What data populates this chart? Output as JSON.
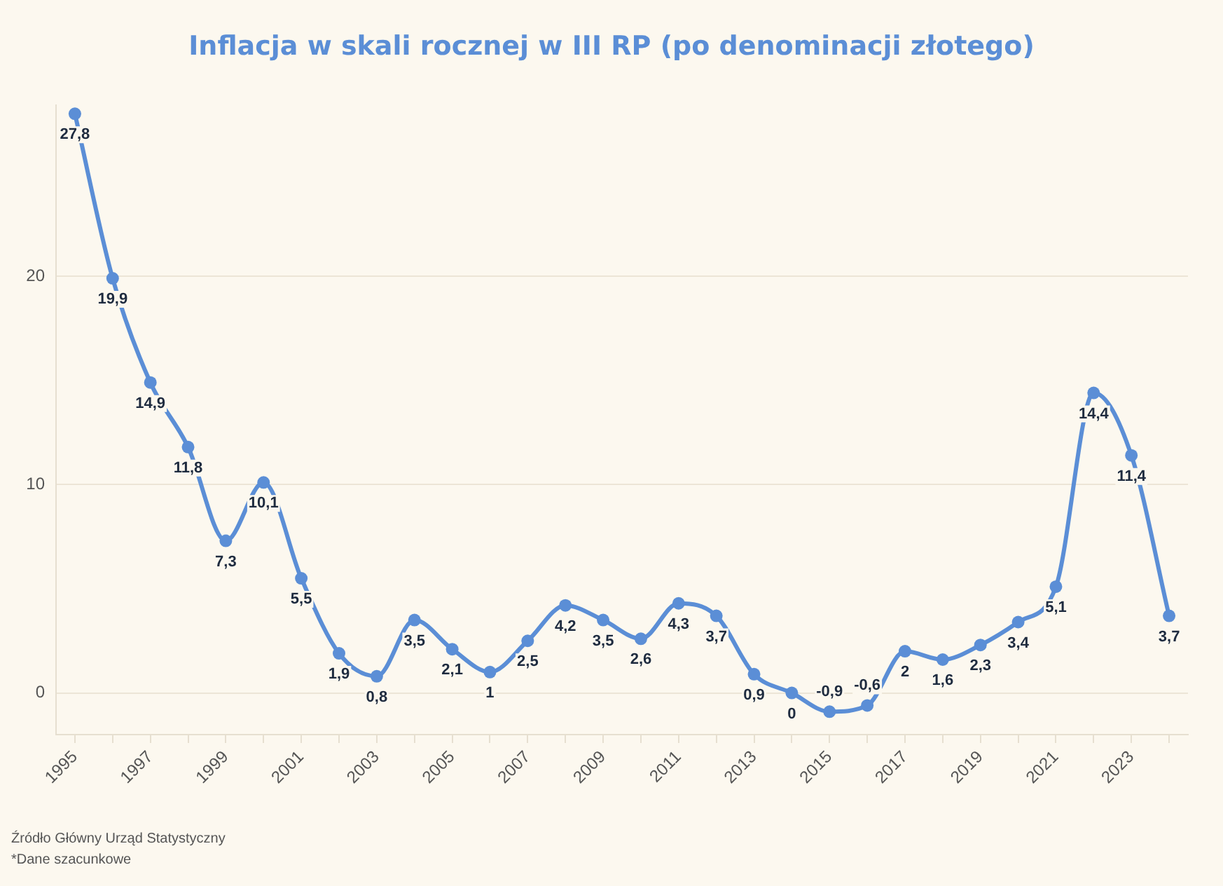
{
  "chart_data": {
    "type": "line",
    "title": "Inflacja w skali rocznej w III RP (po denominacji złotego)",
    "categories": [
      "1995",
      null,
      "1997",
      null,
      "1999",
      null,
      "2001",
      null,
      "2003",
      null,
      "2005",
      null,
      "2007",
      null,
      "2009",
      null,
      "2011",
      null,
      "2013",
      null,
      "2015",
      null,
      "2017",
      null,
      "2019",
      null,
      "2021",
      null,
      "2023",
      null
    ],
    "series": [
      {
        "color": "#5b8ed6",
        "values": [
          27.8,
          19.9,
          14.9,
          11.8,
          7.3,
          10.1,
          5.5,
          1.9,
          0.8,
          3.5,
          2.1,
          1,
          2.5,
          4.2,
          3.5,
          2.6,
          4.3,
          3.7,
          0.9,
          0,
          -0.9,
          -0.6,
          2,
          1.6,
          2.3,
          3.4,
          5.1,
          14.4,
          11.4,
          3.7
        ],
        "value_labels": [
          "27,8",
          "19,9",
          "14,9",
          "11,8",
          "7,3",
          "10,1",
          "5,5",
          "1,9",
          "0,8",
          "3,5",
          "2,1",
          "1",
          "2,5",
          "4,2",
          "3,5",
          "2,6",
          "4,3",
          "3,7",
          "0,9",
          "0",
          "-0,9",
          "-0,6",
          "2",
          "1,6",
          "2,3",
          "3,4",
          "5,1",
          "14,4",
          "11,4",
          "3,7"
        ]
      }
    ],
    "ylim": [
      -2,
      28.2
    ],
    "yticks": [
      0,
      10,
      20
    ],
    "grid": "y",
    "marker": "circle",
    "line_style": "solid",
    "annotations": [
      "Źródło Główny Urząd Statystyczny",
      "*Dane szacunkowe"
    ]
  }
}
